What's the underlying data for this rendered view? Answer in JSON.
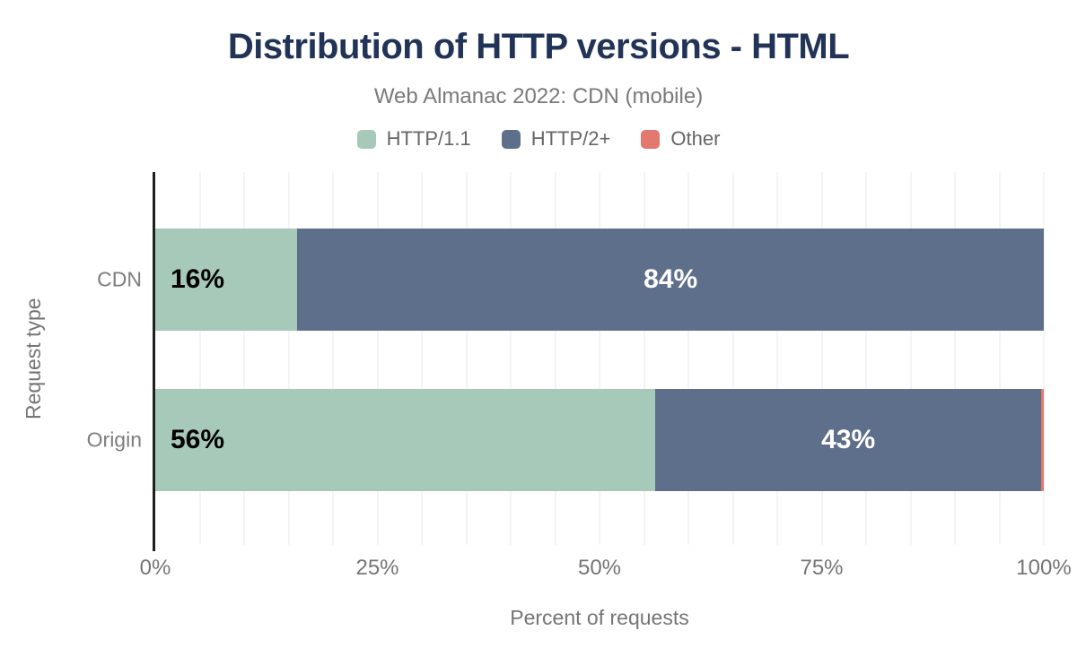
{
  "chart_data": {
    "type": "bar",
    "orientation": "horizontal",
    "stacked": true,
    "title": "Distribution of HTTP versions - HTML",
    "subtitle": "Web Almanac 2022: CDN (mobile)",
    "xlabel": "Percent of requests",
    "ylabel": "Request type",
    "categories": [
      "CDN",
      "Origin"
    ],
    "series": [
      {
        "name": "HTTP/1.1",
        "color": "#a6c9b9",
        "values": [
          16,
          56.3
        ],
        "labels": [
          "16%",
          "56%"
        ],
        "label_color": "#000000",
        "label_align": "left"
      },
      {
        "name": "HTTP/2+",
        "color": "#5e6f8c",
        "values": [
          84,
          43.4
        ],
        "labels": [
          "84%",
          "43%"
        ],
        "label_color": "#ffffff",
        "label_align": "center"
      },
      {
        "name": "Other",
        "color": "#e2786e",
        "values": [
          0,
          0.3
        ],
        "labels": [
          "",
          ""
        ],
        "label_color": "#ffffff",
        "label_align": "center"
      }
    ],
    "x_ticks": [
      {
        "value": 0,
        "label": "0%"
      },
      {
        "value": 25,
        "label": "25%"
      },
      {
        "value": 50,
        "label": "50%"
      },
      {
        "value": 75,
        "label": "75%"
      },
      {
        "value": 100,
        "label": "100%"
      }
    ],
    "xlim": [
      0,
      100
    ],
    "gridline_step": 5,
    "grid": true,
    "legend_position": "top"
  },
  "colors": {
    "title": "#213457",
    "subtitle": "#7a7a7a",
    "axis_text": "#757575",
    "legend_text": "#666666",
    "gridline": "#f4f4f4",
    "axis_line": "#202020",
    "background": "#ffffff"
  }
}
